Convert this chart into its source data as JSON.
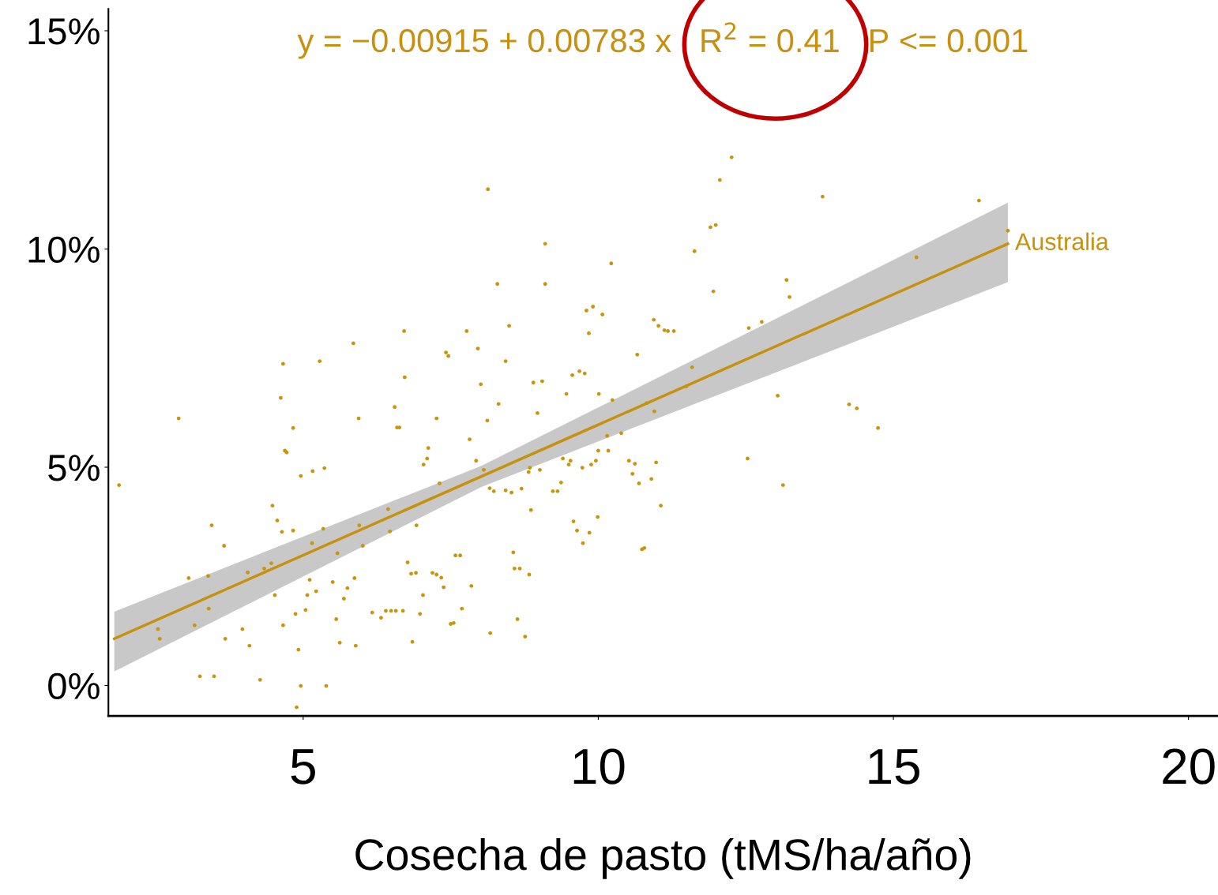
{
  "chart_data": {
    "type": "scatter",
    "xlabel": "Cosecha de pasto (tMS/ha/año)",
    "xlim": [
      1.7,
      20.5
    ],
    "xticks": [
      5,
      10,
      15,
      20
    ],
    "ylim": [
      -0.7,
      15.5
    ],
    "yticks": [
      {
        "value": 0,
        "label": "0%"
      },
      {
        "value": 5,
        "label": "5%"
      },
      {
        "value": 10,
        "label": "10%"
      },
      {
        "value": 15,
        "label": "15%"
      }
    ],
    "grid": false,
    "legend": false,
    "annotations": [
      "y = −0.00915 + 0.00783 x   R$^{2}$ = 0.41   P <= 0.001"
    ],
    "series": [
      {
        "color": "#c8960a",
        "marker": "circle",
        "x": [
          1.88,
          2.54,
          2.57,
          2.89,
          3.06,
          3.16,
          3.25,
          3.39,
          3.4,
          3.45,
          3.49,
          3.66,
          3.68,
          3.97,
          4.06,
          4.09,
          4.27,
          4.34,
          4.46,
          4.52,
          4.48,
          4.56,
          4.64,
          4.62,
          4.66,
          4.72,
          4.66,
          4.69,
          4.83,
          4.83,
          4.87,
          4.89,
          4.92,
          4.96,
          4.96,
          5.04,
          5.07,
          5.11,
          5.15,
          5.16,
          5.22,
          5.28,
          5.34,
          5.36,
          5.39,
          5.5,
          5.56,
          5.58,
          5.62,
          5.69,
          5.75,
          5.85,
          5.87,
          5.89,
          5.94,
          5.95,
          6.01,
          6.17,
          6.32,
          6.4,
          6.44,
          6.47,
          6.49,
          6.55,
          6.57,
          6.59,
          6.63,
          6.69,
          6.71,
          6.72,
          6.77,
          6.83,
          6.85,
          6.91,
          6.92,
          6.98,
          7.03,
          7.04,
          7.1,
          7.12,
          7.19,
          7.26,
          7.26,
          7.31,
          7.34,
          7.38,
          7.42,
          7.46,
          7.5,
          7.55,
          7.58,
          7.66,
          7.69,
          7.77,
          7.82,
          7.85,
          7.93,
          7.96,
          8.01,
          8.06,
          8.12,
          8.13,
          8.16,
          8.17,
          8.23,
          8.29,
          8.31,
          8.43,
          8.43,
          8.49,
          8.53,
          8.56,
          8.58,
          8.63,
          8.67,
          8.7,
          8.76,
          8.82,
          8.83,
          8.84,
          8.86,
          8.9,
          8.97,
          9.01,
          9.05,
          9.1,
          9.1,
          9.23,
          9.31,
          9.37,
          9.4,
          9.46,
          9.5,
          9.53,
          9.56,
          9.58,
          9.64,
          9.68,
          9.73,
          9.74,
          9.77,
          9.8,
          9.84,
          9.85,
          9.88,
          9.91,
          9.96,
          9.99,
          10.0,
          10.01,
          10.07,
          10.15,
          10.17,
          10.22,
          10.24,
          10.39,
          10.52,
          10.58,
          10.62,
          10.69,
          10.66,
          10.74,
          10.78,
          10.82,
          10.9,
          10.94,
          10.95,
          10.98,
          11.02,
          11.06,
          11.12,
          11.18,
          11.28,
          11.49,
          11.59,
          11.63,
          11.9,
          11.95,
          11.99,
          12.06,
          12.26,
          12.53,
          12.55,
          12.77,
          13.04,
          13.13,
          13.19,
          13.24,
          13.8,
          14.25,
          14.38,
          14.74,
          15.39,
          16.45,
          16.94
        ],
        "values": [
          4.59,
          1.29,
          1.07,
          6.12,
          2.46,
          1.38,
          0.21,
          2.51,
          1.76,
          3.67,
          0.21,
          3.2,
          1.07,
          1.29,
          2.59,
          0.91,
          0.13,
          2.68,
          2.8,
          2.07,
          4.12,
          3.78,
          3.52,
          6.59,
          7.37,
          5.34,
          1.38,
          5.38,
          5.9,
          3.55,
          1.64,
          -0.5,
          0.82,
          4.8,
          -0.01,
          1.73,
          2.07,
          2.42,
          3.26,
          4.91,
          2.16,
          7.43,
          3.59,
          4.98,
          -0.01,
          2.37,
          1.52,
          3.03,
          0.98,
          1.99,
          2.23,
          7.84,
          2.46,
          0.91,
          6.12,
          3.67,
          3.2,
          1.67,
          1.55,
          1.71,
          4.04,
          3.53,
          1.71,
          6.38,
          1.71,
          5.91,
          5.91,
          1.71,
          8.12,
          7.06,
          2.82,
          2.56,
          1.0,
          2.58,
          3.67,
          1.64,
          2.07,
          5.06,
          5.2,
          5.44,
          2.58,
          6.12,
          2.54,
          4.63,
          2.47,
          2.25,
          7.63,
          7.55,
          1.41,
          1.43,
          2.98,
          2.98,
          1.76,
          8.12,
          5.64,
          2.28,
          5.15,
          7.72,
          6.9,
          4.94,
          6.07,
          11.37,
          4.52,
          1.2,
          4.45,
          9.2,
          6.45,
          7.43,
          4.47,
          8.24,
          4.42,
          3.05,
          2.68,
          1.52,
          2.68,
          4.51,
          1.12,
          4.89,
          2.54,
          4.99,
          4.02,
          6.94,
          6.24,
          4.94,
          6.97,
          10.12,
          9.2,
          4.45,
          4.45,
          4.65,
          5.2,
          6.68,
          5.06,
          5.15,
          7.11,
          3.76,
          3.55,
          7.2,
          4.99,
          3.26,
          7.15,
          8.59,
          8.07,
          3.5,
          5.06,
          8.68,
          5.15,
          3.86,
          5.38,
          6.68,
          8.5,
          5.72,
          5.38,
          9.67,
          6.54,
          5.78,
          5.15,
          4.85,
          5.08,
          4.63,
          7.58,
          3.12,
          3.15,
          6.47,
          4.73,
          8.38,
          6.28,
          5.11,
          8.24,
          4.12,
          8.14,
          8.12,
          8.12,
          6.85,
          7.29,
          9.95,
          10.5,
          9.03,
          10.55,
          11.58,
          12.1,
          5.2,
          8.19,
          8.33,
          6.64,
          4.59,
          9.29,
          8.9,
          11.2,
          6.44,
          6.35,
          5.9,
          9.81,
          11.11,
          10.42
        ]
      },
      {
        "type": "line",
        "name": "Australia",
        "color": "#c8900f",
        "marker": "none",
        "x": [
          1.8,
          8.02,
          16.94
        ],
        "values": [
          1.07,
          4.79,
          10.12
        ],
        "lower": [
          0.32,
          4.55,
          9.24
        ],
        "upper": [
          1.69,
          5.03,
          11.06
        ]
      }
    ]
  }
}
